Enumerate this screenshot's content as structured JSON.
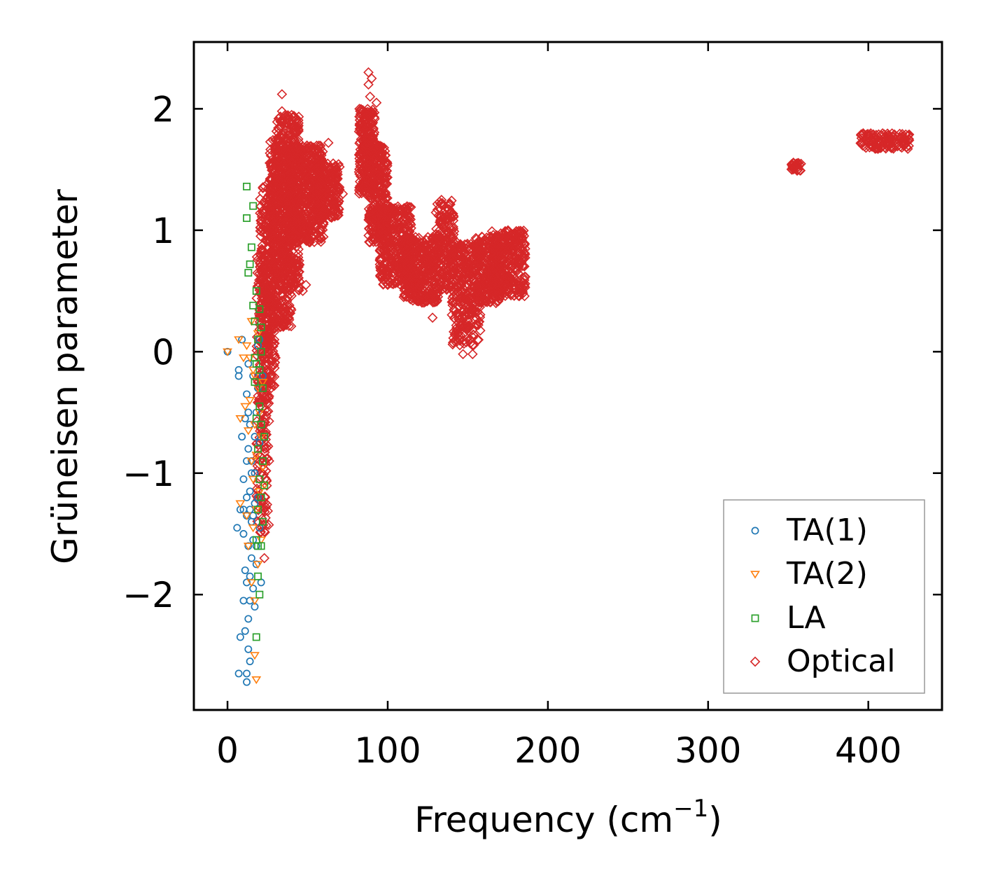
{
  "chart_data": {
    "type": "scatter",
    "title": "",
    "xlabel": "Frequency (cm",
    "xlabel_sup": "−1",
    "xlabel_close": ")",
    "ylabel": "Grüneisen parameter",
    "xlim": [
      -21,
      446
    ],
    "ylim": [
      -2.95,
      2.55
    ],
    "xticks": [
      0,
      100,
      200,
      300,
      400
    ],
    "xtick_labels": [
      "0",
      "100",
      "200",
      "300",
      "400"
    ],
    "yticks": [
      -2,
      -1,
      0,
      1,
      2
    ],
    "ytick_labels": [
      "−2",
      "−1",
      "0",
      "1",
      "2"
    ],
    "legend_position": "lower-right",
    "series": [
      {
        "name": "TA(1)",
        "color": "#1f77b4",
        "marker": "circle",
        "points": [
          [
            0,
            0
          ],
          [
            7,
            -0.15
          ],
          [
            7,
            -0.2
          ],
          [
            8,
            -1.3
          ],
          [
            6,
            -1.45
          ],
          [
            8,
            -2.35
          ],
          [
            7,
            -2.65
          ],
          [
            9,
            -0.7
          ],
          [
            10,
            -1.05
          ],
          [
            10,
            -1.5
          ],
          [
            10,
            -2.05
          ],
          [
            11,
            -2.3
          ],
          [
            11,
            -0.55
          ],
          [
            12,
            -0.9
          ],
          [
            12,
            -1.2
          ],
          [
            12,
            -1.35
          ],
          [
            12,
            -1.9
          ],
          [
            12,
            -2.65
          ],
          [
            12,
            -2.72
          ],
          [
            13,
            -0.5
          ],
          [
            13,
            -0.1
          ],
          [
            13,
            -0.8
          ],
          [
            13,
            -1.6
          ],
          [
            13,
            -2.2
          ],
          [
            13,
            -2.45
          ],
          [
            14,
            -0.6
          ],
          [
            14,
            -1.15
          ],
          [
            14,
            -1.3
          ],
          [
            14,
            -1.85
          ],
          [
            14,
            -2.05
          ],
          [
            15,
            -0.9
          ],
          [
            15,
            -1.4
          ],
          [
            15,
            -1.7
          ],
          [
            16,
            -1.35
          ],
          [
            16,
            -1.55
          ],
          [
            16,
            -1.95
          ],
          [
            17,
            -1.0
          ],
          [
            17,
            -1.25
          ],
          [
            17,
            -2.1
          ],
          [
            18,
            -0.5
          ],
          [
            18,
            -1.6
          ],
          [
            18,
            -1.75
          ],
          [
            19,
            0.05
          ],
          [
            19,
            -0.3
          ],
          [
            20,
            -0.75
          ],
          [
            20,
            -1.45
          ],
          [
            20,
            0.1
          ],
          [
            21,
            -1.9
          ],
          [
            22,
            -0.2
          ],
          [
            9,
            0.1
          ],
          [
            10,
            -1.3
          ],
          [
            11,
            -1.8
          ],
          [
            12,
            -0.35
          ],
          [
            14,
            -2.55
          ],
          [
            15,
            -1.0
          ],
          [
            16,
            -0.2
          ],
          [
            17,
            -0.7
          ],
          [
            19,
            -1.2
          ]
        ]
      },
      {
        "name": "TA(2)",
        "color": "#ff7f0e",
        "marker": "triangle",
        "points": [
          [
            0,
            0
          ],
          [
            7,
            0.1
          ],
          [
            8,
            -0.55
          ],
          [
            8,
            -1.25
          ],
          [
            10,
            -0.05
          ],
          [
            11,
            -0.45
          ],
          [
            12,
            0.05
          ],
          [
            13,
            -0.65
          ],
          [
            13,
            -1.6
          ],
          [
            14,
            -0.4
          ],
          [
            15,
            0.25
          ],
          [
            15,
            -0.9
          ],
          [
            16,
            -0.15
          ],
          [
            16,
            -1.05
          ],
          [
            16,
            -1.45
          ],
          [
            17,
            -0.6
          ],
          [
            17,
            -2.05
          ],
          [
            17,
            -2.5
          ],
          [
            18,
            -0.85
          ],
          [
            18,
            -1.3
          ],
          [
            18,
            -2.7
          ],
          [
            19,
            -0.3
          ],
          [
            19,
            -1.75
          ],
          [
            20,
            -0.5
          ],
          [
            20,
            -1.15
          ],
          [
            21,
            -0.7
          ],
          [
            22,
            -0.95
          ],
          [
            22,
            -0.25
          ],
          [
            23,
            -1.1
          ],
          [
            14,
            -0.05
          ],
          [
            12,
            -1.35
          ],
          [
            15,
            -1.9
          ],
          [
            17,
            -0.2
          ],
          [
            19,
            0.15
          ],
          [
            21,
            -1.55
          ]
        ]
      },
      {
        "name": "LA",
        "color": "#2ca02c",
        "marker": "square",
        "points": [
          [
            12,
            1.1
          ],
          [
            12,
            1.36
          ],
          [
            13,
            0.65
          ],
          [
            14,
            0.72
          ],
          [
            15,
            0.86
          ],
          [
            16,
            1.2
          ],
          [
            16,
            0.38
          ],
          [
            17,
            0.25
          ],
          [
            17,
            -0.05
          ],
          [
            17,
            -0.25
          ],
          [
            18,
            -0.1
          ],
          [
            18,
            -0.55
          ],
          [
            18,
            -1.55
          ],
          [
            18,
            -2.35
          ],
          [
            19,
            0.1
          ],
          [
            19,
            -0.8
          ],
          [
            19,
            -1.3
          ],
          [
            19,
            -1.85
          ],
          [
            20,
            0.35
          ],
          [
            20,
            -0.15
          ],
          [
            20,
            -0.45
          ],
          [
            20,
            -1.05
          ],
          [
            21,
            0.0
          ],
          [
            21,
            -0.6
          ],
          [
            21,
            -1.2
          ],
          [
            21,
            -1.6
          ],
          [
            22,
            -0.3
          ],
          [
            22,
            -0.9
          ],
          [
            22,
            -1.4
          ],
          [
            23,
            -0.7
          ],
          [
            23,
            -1.1
          ],
          [
            18,
            0.5
          ],
          [
            19,
            -1.6
          ],
          [
            20,
            -2.0
          ],
          [
            21,
            0.2
          ]
        ]
      },
      {
        "name": "Optical",
        "color": "#d62728",
        "marker": "diamond",
        "points": [],
        "point_blocks": [
          {
            "x": [
              18,
              26
            ],
            "y": [
              -1.5,
              0.8
            ],
            "n": 220
          },
          {
            "x": [
              20,
              30
            ],
            "y": [
              -0.3,
              1.4
            ],
            "n": 300
          },
          {
            "x": [
              26,
              40
            ],
            "y": [
              0.2,
              1.75
            ],
            "n": 500
          },
          {
            "x": [
              30,
              45
            ],
            "y": [
              0.5,
              1.95
            ],
            "n": 400
          },
          {
            "x": [
              38,
              60
            ],
            "y": [
              0.9,
              1.7
            ],
            "n": 550
          },
          {
            "x": [
              55,
              70
            ],
            "y": [
              1.1,
              1.55
            ],
            "n": 220
          },
          {
            "x": [
              82,
              92
            ],
            "y": [
              1.3,
              2.0
            ],
            "n": 260
          },
          {
            "x": [
              88,
              100
            ],
            "y": [
              0.9,
              1.7
            ],
            "n": 300
          },
          {
            "x": [
              95,
              115
            ],
            "y": [
              0.55,
              1.2
            ],
            "n": 380
          },
          {
            "x": [
              110,
              132
            ],
            "y": [
              0.4,
              0.95
            ],
            "n": 380
          },
          {
            "x": [
              130,
              142
            ],
            "y": [
              0.5,
              1.25
            ],
            "n": 200
          },
          {
            "x": [
              140,
              158
            ],
            "y": [
              0.05,
              0.9
            ],
            "n": 320
          },
          {
            "x": [
              155,
              170
            ],
            "y": [
              0.4,
              0.95
            ],
            "n": 220
          },
          {
            "x": [
              165,
              186
            ],
            "y": [
              0.45,
              1.0
            ],
            "n": 320
          },
          {
            "x": [
              352,
              358
            ],
            "y": [
              1.49,
              1.56
            ],
            "n": 30
          },
          {
            "x": [
              395,
              426
            ],
            "y": [
              1.67,
              1.8
            ],
            "n": 140
          }
        ],
        "outliers": [
          [
            34,
            2.12
          ],
          [
            34,
            1.98
          ],
          [
            36,
            1.95
          ],
          [
            44,
            1.85
          ],
          [
            47,
            0.5
          ],
          [
            49,
            0.55
          ],
          [
            88,
            2.3
          ],
          [
            88,
            2.2
          ],
          [
            90,
            2.25
          ],
          [
            89,
            2.1
          ],
          [
            93,
            2.05
          ],
          [
            147,
            -0.02
          ],
          [
            153,
            -0.02
          ],
          [
            128,
            0.28
          ],
          [
            110,
            0.45
          ],
          [
            100,
            0.55
          ],
          [
            30,
            -0.05
          ],
          [
            28,
            0.05
          ],
          [
            26,
            -0.9
          ],
          [
            24,
            -1.28
          ],
          [
            23,
            -1.48
          ],
          [
            23,
            -1.7
          ],
          [
            63,
            1.72
          ],
          [
            72,
            1.3
          ]
        ]
      }
    ]
  }
}
